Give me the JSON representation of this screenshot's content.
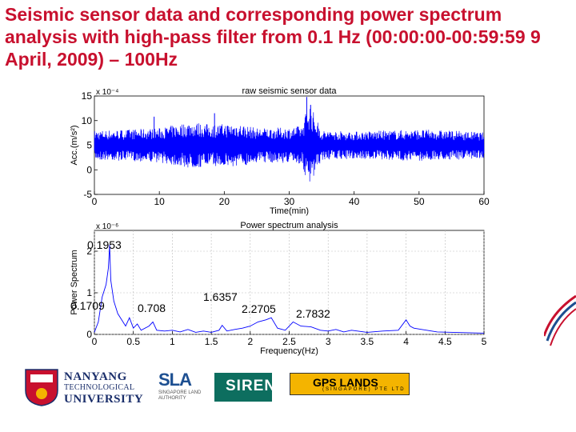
{
  "slide": {
    "title": "Seismic sensor data and corresponding power spectrum analysis with high-pass filter from 0.1 Hz (00:00:00-00:59:59 9 April, 2009) – 100Hz"
  },
  "colors": {
    "title": "#c8102e",
    "signal": "#0000ff",
    "axis": "#000000"
  },
  "chart_data": [
    {
      "type": "line",
      "title": "raw seismic sensor data",
      "xlabel": "Time(min)",
      "ylabel": "Acc.(m/s²)",
      "y_multiplier": "x 10⁻⁴",
      "xlim": [
        0,
        60
      ],
      "ylim": [
        -5,
        15
      ],
      "x_ticks": [
        "0",
        "10",
        "20",
        "30",
        "40",
        "50",
        "60"
      ],
      "y_ticks": [
        "-5",
        "0",
        "5",
        "10",
        "15"
      ],
      "grid": false,
      "baseline": 5,
      "amplitude_envelope": {
        "x": [
          0,
          5,
          10,
          15,
          18,
          22,
          25,
          30,
          32,
          33,
          35,
          40,
          45,
          50,
          55,
          60
        ],
        "y": [
          3,
          3.2,
          3.5,
          4.8,
          4.2,
          4.5,
          3.5,
          3.6,
          4,
          9,
          3,
          2.8,
          3,
          3.2,
          3,
          2.6
        ]
      },
      "spikes": [
        {
          "x": 32.7,
          "y": 14.8
        },
        {
          "x": 33.3,
          "y": 13.2
        },
        {
          "x": 18.5,
          "y": 11.5
        },
        {
          "x": 9.2,
          "y": 10.8
        }
      ]
    },
    {
      "type": "line",
      "title": "Power spectrum analysis",
      "xlabel": "Frequency(Hz)",
      "ylabel": "Power Spectrum",
      "y_multiplier": "x 10⁻⁶",
      "xlim": [
        0,
        5
      ],
      "ylim": [
        0,
        2.5
      ],
      "x_ticks": [
        "0",
        "0.5",
        "1",
        "1.5",
        "2",
        "2.5",
        "3",
        "3.5",
        "4",
        "4.5",
        "5"
      ],
      "y_ticks": [
        "0",
        "1",
        "2"
      ],
      "y_tick_values": [
        0,
        1,
        2
      ],
      "grid": true,
      "peak_labels": [
        {
          "label": "0.1953",
          "x": 0.1953
        },
        {
          "label": "0.1709",
          "x": 0.1709
        },
        {
          "label": "0.708",
          "x": 0.708
        },
        {
          "label": "1.6357",
          "x": 1.6357
        },
        {
          "label": "2.2705",
          "x": 2.2705
        },
        {
          "label": "2.7832",
          "x": 2.7832
        }
      ],
      "series": {
        "x": [
          0,
          0.05,
          0.1,
          0.15,
          0.18,
          0.195,
          0.21,
          0.25,
          0.3,
          0.35,
          0.4,
          0.45,
          0.5,
          0.55,
          0.6,
          0.7,
          0.75,
          0.8,
          0.9,
          1,
          1.1,
          1.2,
          1.3,
          1.4,
          1.5,
          1.6,
          1.64,
          1.7,
          1.8,
          1.9,
          2,
          2.1,
          2.2,
          2.27,
          2.35,
          2.45,
          2.55,
          2.65,
          2.78,
          2.9,
          3,
          3.1,
          3.2,
          3.3,
          3.5,
          3.7,
          3.9,
          4,
          4.05,
          4.1,
          4.2,
          4.4,
          4.6,
          4.8,
          5
        ],
        "y": [
          0.05,
          0.3,
          0.9,
          1.2,
          1.6,
          2.15,
          1.3,
          0.8,
          0.5,
          0.35,
          0.2,
          0.4,
          0.15,
          0.25,
          0.1,
          0.2,
          0.3,
          0.1,
          0.08,
          0.1,
          0.06,
          0.12,
          0.05,
          0.08,
          0.05,
          0.1,
          0.22,
          0.08,
          0.12,
          0.15,
          0.2,
          0.3,
          0.35,
          0.4,
          0.15,
          0.1,
          0.3,
          0.2,
          0.18,
          0.1,
          0.08,
          0.12,
          0.06,
          0.1,
          0.05,
          0.08,
          0.1,
          0.35,
          0.2,
          0.15,
          0.12,
          0.06,
          0.05,
          0.04,
          0.03
        ]
      }
    }
  ],
  "logos": {
    "ntu_line1": "NANYANG",
    "ntu_line2": "TECHNOLOGICAL",
    "ntu_line3": "UNIVERSITY",
    "sla": "SLA",
    "sla_sub": "SINGAPORE LAND AUTHORITY",
    "sirent": "SIRENT",
    "gps": "GPS LANDS",
    "gps_sub": "(SINGAPORE) PTE LTD"
  }
}
